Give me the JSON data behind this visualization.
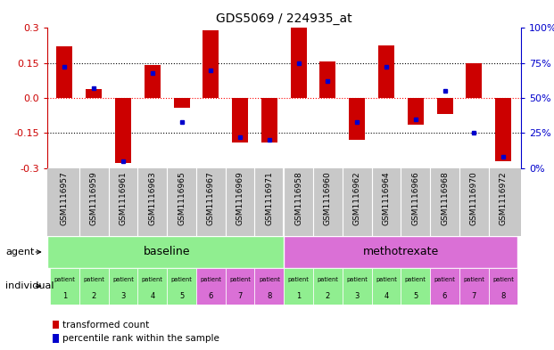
{
  "title": "GDS5069 / 224935_at",
  "samples": [
    "GSM1116957",
    "GSM1116959",
    "GSM1116961",
    "GSM1116963",
    "GSM1116965",
    "GSM1116967",
    "GSM1116969",
    "GSM1116971",
    "GSM1116958",
    "GSM1116960",
    "GSM1116962",
    "GSM1116964",
    "GSM1116966",
    "GSM1116968",
    "GSM1116970",
    "GSM1116972"
  ],
  "red_bars": [
    0.22,
    0.04,
    -0.28,
    0.14,
    -0.04,
    0.29,
    -0.19,
    -0.19,
    0.3,
    0.155,
    -0.18,
    0.225,
    -0.115,
    -0.07,
    0.15,
    -0.27
  ],
  "blue_dots": [
    72,
    57,
    5,
    68,
    33,
    70,
    22,
    20,
    75,
    62,
    33,
    72,
    35,
    55,
    25,
    8
  ],
  "ylim_left": [
    -0.3,
    0.3
  ],
  "ylim_right": [
    0,
    100
  ],
  "yticks_left": [
    -0.3,
    -0.15,
    0.0,
    0.15,
    0.3
  ],
  "yticks_right": [
    0,
    25,
    50,
    75,
    100
  ],
  "ytick_labels_right": [
    "0%",
    "25%",
    "50%",
    "75%",
    "100%"
  ],
  "hlines": [
    -0.15,
    0.0,
    0.15
  ],
  "hline_colors": [
    "black",
    "red",
    "black"
  ],
  "baseline_color": "#90ee90",
  "methotrexate_color": "#da70d6",
  "gsm_bg_color": "#c8c8c8",
  "n_baseline": 8,
  "n_methotrexate": 8,
  "agent_label": "agent",
  "individual_label": "individual",
  "legend_red": "transformed count",
  "legend_blue": "percentile rank within the sample",
  "red_color": "#cc0000",
  "blue_color": "#0000cc",
  "bar_width": 0.55,
  "ind_colors": [
    "#90ee90",
    "#90ee90",
    "#90ee90",
    "#90ee90",
    "#90ee90",
    "#da70d6",
    "#da70d6",
    "#da70d6",
    "#90ee90",
    "#90ee90",
    "#90ee90",
    "#90ee90",
    "#90ee90",
    "#da70d6",
    "#da70d6",
    "#da70d6"
  ]
}
